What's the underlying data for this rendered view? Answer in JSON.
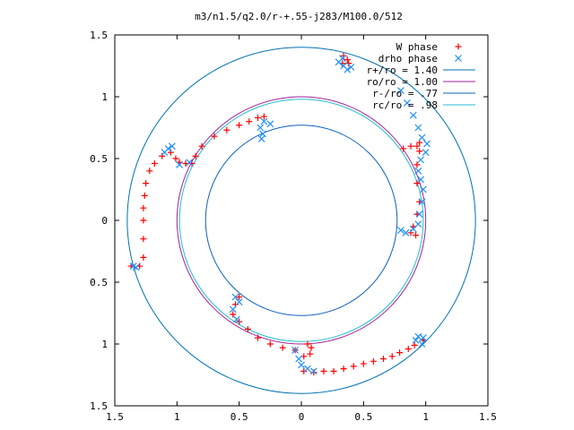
{
  "chart_data": {
    "type": "scatter",
    "title": "m3/n1.5/q2.0/r-+.55-j283/M100.0/512",
    "xlim": [
      -1.5,
      1.5
    ],
    "ylim": [
      -1.5,
      1.5
    ],
    "x_tick_labels": [
      "1.5",
      "1",
      "0.5",
      "0",
      "0.5",
      "1",
      "1.5"
    ],
    "y_tick_labels": [
      "1.5",
      "1",
      "0.5",
      "0",
      "0.5",
      "1",
      "1.5"
    ],
    "tick_values": [
      -1.5,
      -1,
      -0.5,
      0,
      0.5,
      1,
      1.5
    ],
    "grid": false,
    "legend_position": "top-right",
    "series": [
      {
        "name": "W phase",
        "marker": "+",
        "color": "#ff0000",
        "points": [
          [
            0.33,
            1.27
          ],
          [
            0.38,
            1.27
          ],
          [
            0.37,
            1.3
          ],
          [
            0.34,
            1.33
          ],
          [
            0.82,
            0.58
          ],
          [
            0.88,
            0.6
          ],
          [
            0.93,
            0.6
          ],
          [
            0.95,
            0.63
          ],
          [
            0.95,
            0.56
          ],
          [
            0.93,
            0.45
          ],
          [
            0.93,
            0.3
          ],
          [
            0.95,
            0.15
          ],
          [
            0.93,
            0.05
          ],
          [
            0.9,
            -0.05
          ],
          [
            0.88,
            -0.1
          ],
          [
            0.92,
            -0.12
          ],
          [
            0.98,
            -0.97
          ],
          [
            0.91,
            -1.01
          ],
          [
            0.86,
            -1.04
          ],
          [
            0.79,
            -1.07
          ],
          [
            0.73,
            -1.1
          ],
          [
            0.66,
            -1.12
          ],
          [
            0.58,
            -1.14
          ],
          [
            0.5,
            -1.16
          ],
          [
            0.42,
            -1.18
          ],
          [
            0.34,
            -1.2
          ],
          [
            0.26,
            -1.22
          ],
          [
            0.18,
            -1.22
          ],
          [
            0.1,
            -1.23
          ],
          [
            0.02,
            -1.22
          ],
          [
            0.05,
            -1.0
          ],
          [
            0.08,
            -1.03
          ],
          [
            0.07,
            -1.08
          ],
          [
            0.02,
            -1.1
          ],
          [
            -0.05,
            -1.05
          ],
          [
            -0.15,
            -1.03
          ],
          [
            -0.25,
            -1.0
          ],
          [
            -0.35,
            -0.95
          ],
          [
            -0.43,
            -0.88
          ],
          [
            -0.5,
            -0.82
          ],
          [
            -0.55,
            -0.76
          ],
          [
            -0.53,
            -0.68
          ],
          [
            -0.5,
            -0.62
          ],
          [
            -1.37,
            -0.37
          ],
          [
            -1.3,
            -0.37
          ],
          [
            -1.27,
            -0.3
          ],
          [
            -1.27,
            -0.15
          ],
          [
            -1.27,
            0.0
          ],
          [
            -1.27,
            0.1
          ],
          [
            -1.26,
            0.2
          ],
          [
            -1.25,
            0.3
          ],
          [
            -1.22,
            0.4
          ],
          [
            -1.18,
            0.46
          ],
          [
            -1.12,
            0.52
          ],
          [
            -1.05,
            0.55
          ],
          [
            -1.01,
            0.5
          ],
          [
            -0.98,
            0.47
          ],
          [
            -0.93,
            0.46
          ],
          [
            -0.88,
            0.46
          ],
          [
            -0.85,
            0.52
          ],
          [
            -0.8,
            0.6
          ],
          [
            -0.7,
            0.68
          ],
          [
            -0.6,
            0.73
          ],
          [
            -0.5,
            0.77
          ],
          [
            -0.42,
            0.8
          ],
          [
            -0.35,
            0.83
          ],
          [
            -0.3,
            0.84
          ]
        ]
      },
      {
        "name": "drho phase",
        "marker": "x",
        "color": "#1e90ff",
        "points": [
          [
            0.3,
            1.28
          ],
          [
            0.34,
            1.25
          ],
          [
            0.4,
            1.24
          ],
          [
            0.37,
            1.22
          ],
          [
            0.33,
            1.31
          ],
          [
            0.8,
            1.05
          ],
          [
            0.85,
            0.95
          ],
          [
            0.9,
            0.85
          ],
          [
            0.94,
            0.75
          ],
          [
            0.97,
            0.67
          ],
          [
            1.01,
            0.62
          ],
          [
            1.0,
            0.55
          ],
          [
            0.96,
            0.49
          ],
          [
            0.94,
            0.4
          ],
          [
            0.96,
            0.33
          ],
          [
            0.98,
            0.25
          ],
          [
            0.97,
            0.15
          ],
          [
            0.95,
            0.05
          ],
          [
            0.94,
            -0.03
          ],
          [
            0.9,
            -0.07
          ],
          [
            0.84,
            -0.1
          ],
          [
            0.8,
            -0.08
          ],
          [
            0.92,
            -0.97
          ],
          [
            0.94,
            -0.94
          ],
          [
            0.98,
            -0.95
          ],
          [
            0.97,
            -1.0
          ],
          [
            -0.05,
            -1.05
          ],
          [
            -0.02,
            -1.12
          ],
          [
            0.0,
            -1.17
          ],
          [
            0.05,
            -1.2
          ],
          [
            0.1,
            -1.22
          ],
          [
            -0.53,
            -0.62
          ],
          [
            -0.5,
            -0.66
          ],
          [
            -0.55,
            -0.72
          ],
          [
            -0.52,
            -0.8
          ],
          [
            -1.35,
            -0.37
          ],
          [
            -1.33,
            -0.38
          ],
          [
            -1.07,
            0.58
          ],
          [
            -1.04,
            0.6
          ],
          [
            -1.1,
            0.55
          ],
          [
            -0.98,
            0.45
          ],
          [
            -0.9,
            0.47
          ],
          [
            -0.25,
            0.78
          ],
          [
            -0.3,
            0.8
          ],
          [
            -0.33,
            0.75
          ],
          [
            -0.31,
            0.7
          ],
          [
            -0.32,
            0.66
          ]
        ]
      }
    ],
    "circles": [
      {
        "name": "r+/ro = 1.40",
        "r": 1.4,
        "color": "#0072b2"
      },
      {
        "name": "ro/ro = 1.00",
        "r": 1.0,
        "color": "#a020a0"
      },
      {
        "name": "r-/ro = .77",
        "r": 0.77,
        "color": "#1060c0"
      },
      {
        "name": "rc/ro = .98",
        "r": 0.98,
        "color": "#20c0d0"
      }
    ]
  }
}
